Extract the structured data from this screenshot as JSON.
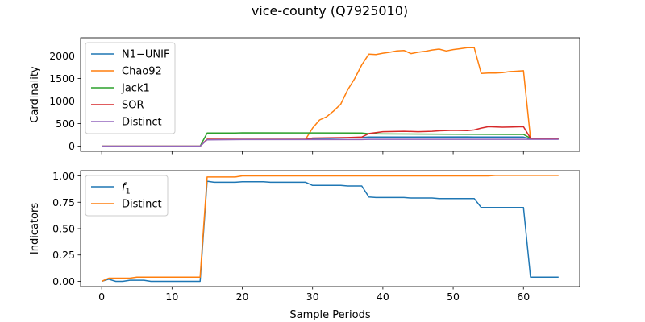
{
  "figure_title": "vice-county (Q7925010)",
  "chart_data": [
    {
      "type": "line",
      "title": "",
      "xlabel": "",
      "ylabel": "Cardinality",
      "xlim": [
        -3,
        68
      ],
      "ylim": [
        -115,
        2400
      ],
      "xticks": [
        0,
        10,
        20,
        30,
        40,
        50,
        60
      ],
      "xtick_labels_visible": false,
      "yticks": [
        0,
        500,
        1000,
        1500,
        2000
      ],
      "ytick_labels": [
        "0",
        "500",
        "1000",
        "1500",
        "2000"
      ],
      "grid": false,
      "legend_position": "upper-left",
      "series": [
        {
          "name": "N1−UNIF",
          "color": "#1f77b4",
          "values": [
            [
              0,
              0
            ],
            [
              14,
              0
            ],
            [
              15,
              150
            ],
            [
              29,
              150
            ],
            [
              30,
              165
            ],
            [
              37,
              190
            ],
            [
              38,
              200
            ],
            [
              52,
              205
            ],
            [
              53,
              200
            ],
            [
              60,
              200
            ],
            [
              61,
              160
            ],
            [
              65,
              160
            ]
          ]
        },
        {
          "name": "Chao92",
          "color": "#ff7f0e",
          "values": [
            [
              0,
              0
            ],
            [
              14,
              0
            ],
            [
              15,
              150
            ],
            [
              29,
              150
            ],
            [
              30,
              400
            ],
            [
              31,
              580
            ],
            [
              32,
              650
            ],
            [
              33,
              780
            ],
            [
              34,
              930
            ],
            [
              35,
              1250
            ],
            [
              36,
              1500
            ],
            [
              37,
              1800
            ],
            [
              38,
              2040
            ],
            [
              39,
              2030
            ],
            [
              40,
              2060
            ],
            [
              41,
              2080
            ],
            [
              42,
              2110
            ],
            [
              43,
              2120
            ],
            [
              44,
              2050
            ],
            [
              45,
              2080
            ],
            [
              46,
              2100
            ],
            [
              47,
              2130
            ],
            [
              48,
              2150
            ],
            [
              49,
              2110
            ],
            [
              50,
              2140
            ],
            [
              51,
              2160
            ],
            [
              52,
              2180
            ],
            [
              53,
              2180
            ],
            [
              54,
              1610
            ],
            [
              55,
              1620
            ],
            [
              56,
              1620
            ],
            [
              57,
              1630
            ],
            [
              58,
              1650
            ],
            [
              59,
              1660
            ],
            [
              60,
              1670
            ],
            [
              61,
              170
            ],
            [
              65,
              170
            ]
          ]
        },
        {
          "name": "Jack1",
          "color": "#2ca02c",
          "values": [
            [
              0,
              0
            ],
            [
              14,
              0
            ],
            [
              15,
              290
            ],
            [
              19,
              290
            ],
            [
              20,
              295
            ],
            [
              37,
              290
            ],
            [
              38,
              275
            ],
            [
              40,
              270
            ],
            [
              50,
              265
            ],
            [
              60,
              260
            ],
            [
              61,
              175
            ],
            [
              65,
              175
            ]
          ]
        },
        {
          "name": "SOR",
          "color": "#d62728",
          "values": [
            [
              0,
              0
            ],
            [
              14,
              0
            ],
            [
              15,
              150
            ],
            [
              29,
              150
            ],
            [
              30,
              180
            ],
            [
              35,
              190
            ],
            [
              37,
              200
            ],
            [
              38,
              280
            ],
            [
              39,
              300
            ],
            [
              40,
              320
            ],
            [
              43,
              330
            ],
            [
              45,
              320
            ],
            [
              47,
              330
            ],
            [
              48,
              340
            ],
            [
              50,
              350
            ],
            [
              52,
              345
            ],
            [
              53,
              360
            ],
            [
              54,
              400
            ],
            [
              55,
              430
            ],
            [
              57,
              420
            ],
            [
              60,
              430
            ],
            [
              61,
              175
            ],
            [
              65,
              175
            ]
          ]
        },
        {
          "name": "Distinct",
          "color": "#9467bd",
          "values": [
            [
              0,
              0
            ],
            [
              14,
              0
            ],
            [
              15,
              140
            ],
            [
              20,
              145
            ],
            [
              37,
              145
            ],
            [
              38,
              150
            ],
            [
              50,
              150
            ],
            [
              60,
              150
            ],
            [
              65,
              150
            ]
          ]
        }
      ]
    },
    {
      "type": "line",
      "title": "",
      "xlabel": "Sample Periods",
      "ylabel": "Indicators",
      "xlim": [
        -3,
        68
      ],
      "ylim": [
        -0.05,
        1.05
      ],
      "xticks": [
        0,
        10,
        20,
        30,
        40,
        50,
        60
      ],
      "xtick_labels": [
        "0",
        "10",
        "20",
        "30",
        "40",
        "50",
        "60"
      ],
      "yticks": [
        0,
        0.25,
        0.5,
        0.75,
        1.0
      ],
      "ytick_labels": [
        "0.00",
        "0.25",
        "0.50",
        "0.75",
        "1.00"
      ],
      "grid": false,
      "legend_position": "upper-left",
      "series": [
        {
          "name": "f1",
          "label_base": "f",
          "label_sub": "1",
          "color": "#1f77b4",
          "values": [
            [
              0,
              0
            ],
            [
              1,
              0.02
            ],
            [
              2,
              0
            ],
            [
              3,
              0
            ],
            [
              4,
              0.01
            ],
            [
              6,
              0.01
            ],
            [
              7,
              0
            ],
            [
              14,
              0
            ],
            [
              15,
              0.95
            ],
            [
              16,
              0.94
            ],
            [
              19,
              0.94
            ],
            [
              20,
              0.945
            ],
            [
              23,
              0.945
            ],
            [
              24,
              0.94
            ],
            [
              29,
              0.94
            ],
            [
              30,
              0.91
            ],
            [
              34,
              0.91
            ],
            [
              35,
              0.905
            ],
            [
              37,
              0.905
            ],
            [
              38,
              0.8
            ],
            [
              39,
              0.795
            ],
            [
              43,
              0.795
            ],
            [
              44,
              0.79
            ],
            [
              47,
              0.79
            ],
            [
              48,
              0.785
            ],
            [
              53,
              0.785
            ],
            [
              54,
              0.7
            ],
            [
              60,
              0.7
            ],
            [
              61,
              0.04
            ],
            [
              65,
              0.04
            ]
          ]
        },
        {
          "name": "Distinct",
          "color": "#ff7f0e",
          "values": [
            [
              0,
              0
            ],
            [
              1,
              0.03
            ],
            [
              4,
              0.03
            ],
            [
              5,
              0.04
            ],
            [
              14,
              0.04
            ],
            [
              15,
              0.99
            ],
            [
              19,
              0.99
            ],
            [
              20,
              1.0
            ],
            [
              55,
              1.0
            ],
            [
              56,
              1.005
            ],
            [
              65,
              1.005
            ]
          ]
        }
      ]
    }
  ]
}
